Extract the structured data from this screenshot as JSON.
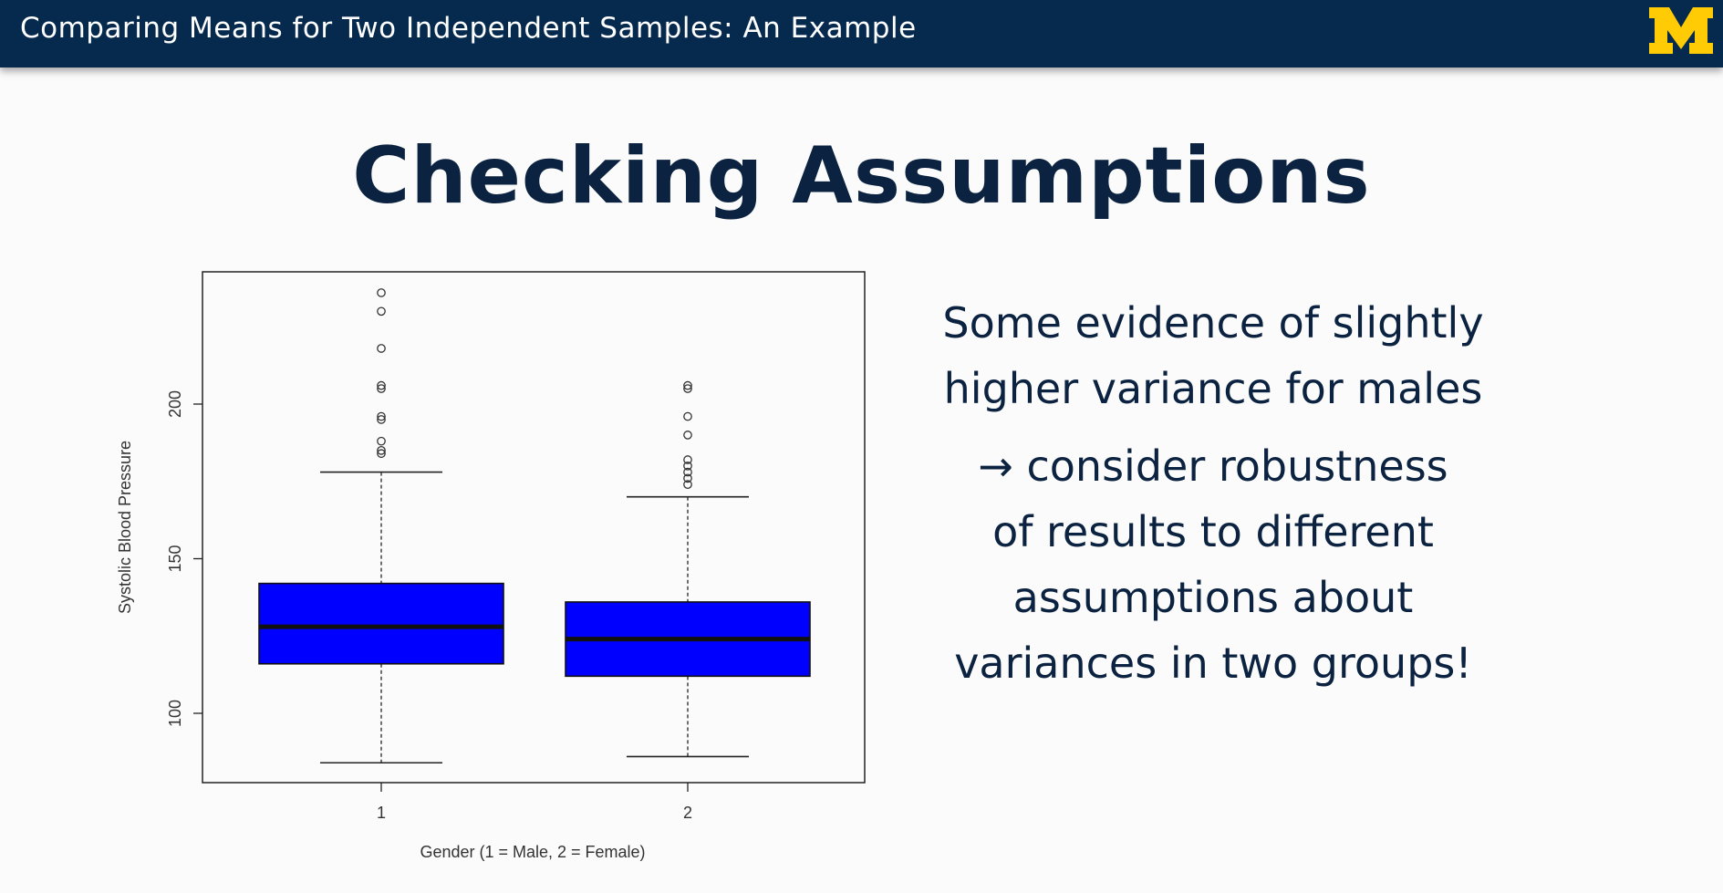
{
  "header": {
    "title": "Comparing Means for Two Independent Samples: An Example",
    "logo_letter": "M",
    "background_color": "#062a4e",
    "logo_color": "#ffcb05"
  },
  "slide": {
    "title": "Checking Assumptions",
    "text_lines": [
      "Some evidence of slightly",
      "higher variance for males",
      "→ consider robustness",
      "of results to different",
      "assumptions about",
      "variances in two groups!"
    ]
  },
  "chart_data": {
    "type": "boxplot",
    "xlabel": "Gender (1 = Male, 2 = Female)",
    "ylabel": "Systolic Blood Pressure",
    "ylim": [
      78,
      243
    ],
    "y_ticks": [
      "100",
      "150",
      "200"
    ],
    "categories": [
      "1",
      "2"
    ],
    "box_color": "#0000ff",
    "grid": false,
    "boxes": [
      {
        "category": "1",
        "whisker_low": 84,
        "q1": 116,
        "median": 128,
        "q3": 142,
        "whisker_high": 178,
        "outliers": [
          236,
          230,
          218,
          206,
          205,
          196,
          195,
          188,
          185,
          184
        ]
      },
      {
        "category": "2",
        "whisker_low": 86,
        "q1": 112,
        "median": 124,
        "q3": 136,
        "whisker_high": 170,
        "outliers": [
          206,
          205,
          196,
          190,
          182,
          180,
          178,
          176,
          174
        ]
      }
    ]
  }
}
